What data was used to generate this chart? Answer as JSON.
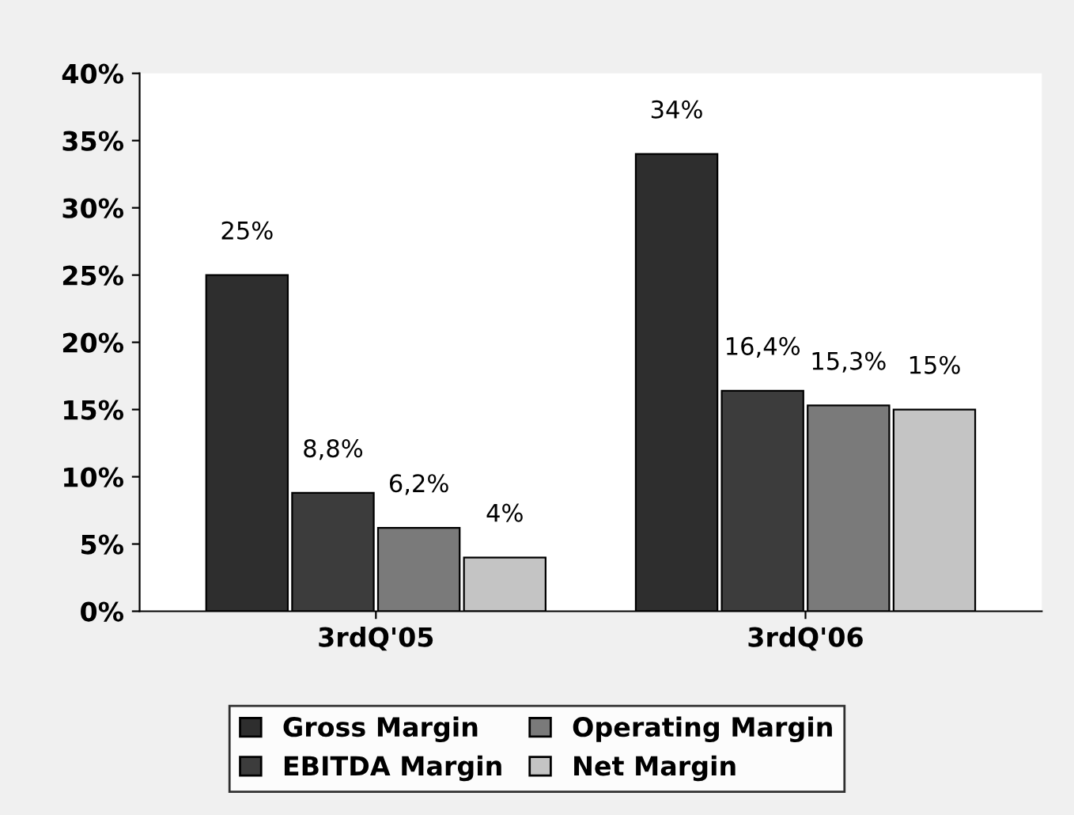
{
  "chart_data": {
    "type": "bar",
    "categories": [
      "3rdQ'05",
      "3rdQ'06"
    ],
    "series": [
      {
        "name": "Gross Margin",
        "color": "#2e2e2e",
        "values": [
          25,
          34
        ],
        "value_labels": [
          "25%",
          "34%"
        ]
      },
      {
        "name": "EBITDA Margin",
        "color": "#3c3c3c",
        "values": [
          8.8,
          16.4
        ],
        "value_labels": [
          "8,8%",
          "16,4%"
        ]
      },
      {
        "name": "Operating Margin",
        "color": "#7a7a7a",
        "values": [
          6.2,
          15.3
        ],
        "value_labels": [
          "6,2%",
          "15,3%"
        ]
      },
      {
        "name": "Net Margin",
        "color": "#c4c4c4",
        "values": [
          4,
          15
        ],
        "value_labels": [
          "4%",
          "15%"
        ]
      }
    ],
    "ylim": [
      0,
      40
    ],
    "yticks": [
      {
        "value": 0,
        "label": "0%"
      },
      {
        "value": 5,
        "label": "5%"
      },
      {
        "value": 10,
        "label": "10%"
      },
      {
        "value": 15,
        "label": "15%"
      },
      {
        "value": 20,
        "label": "20%"
      },
      {
        "value": 25,
        "label": "25%"
      },
      {
        "value": 30,
        "label": "30%"
      },
      {
        "value": 35,
        "label": "35%"
      },
      {
        "value": 40,
        "label": "40%"
      }
    ],
    "grid": false,
    "legend": "bottom"
  }
}
